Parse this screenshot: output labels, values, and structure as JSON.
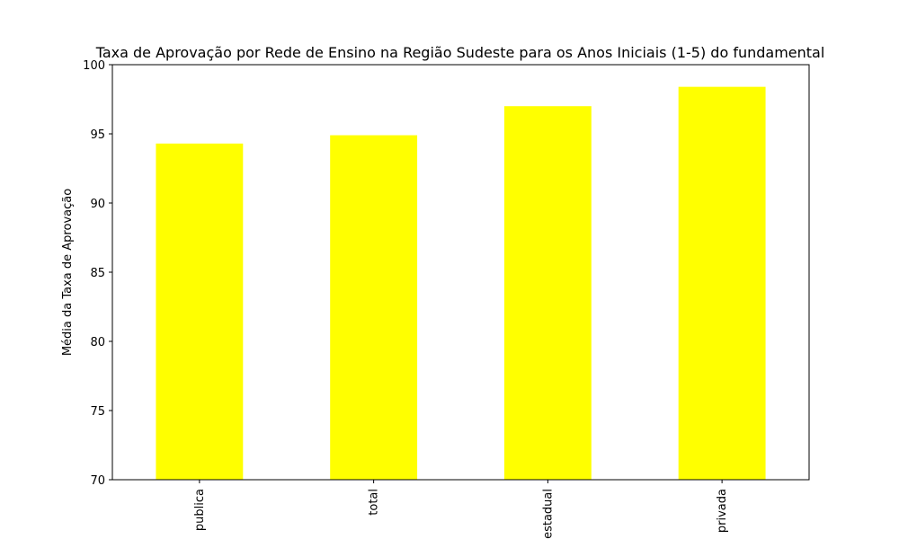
{
  "chart_data": {
    "type": "bar",
    "title": "Taxa de Aprovação por Rede de Ensino na Região Sudeste para os Anos Iniciais (1-5) do fundamental",
    "xlabel": "",
    "ylabel": "Média da Taxa de Aprovação",
    "categories": [
      "publica",
      "total",
      "estadual",
      "privada"
    ],
    "values": [
      94.3,
      94.9,
      97.0,
      98.4
    ],
    "ylim": [
      70,
      100
    ],
    "yticks": [
      70,
      75,
      80,
      85,
      90,
      95,
      100
    ],
    "bar_color": "#ffff00",
    "grid": false,
    "legend": "none",
    "x_tick_rotation": "vertical"
  }
}
